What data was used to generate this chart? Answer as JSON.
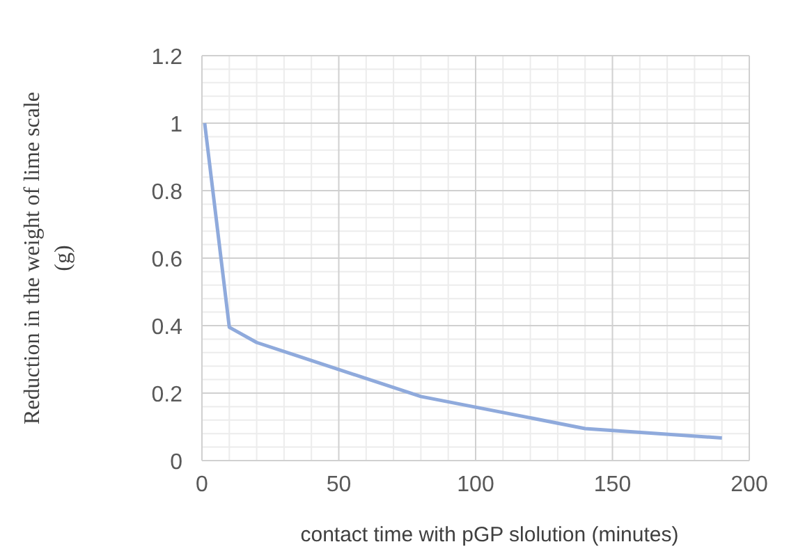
{
  "chart_data": {
    "type": "line",
    "xlabel": "contact time with pGP slolution (minutes)",
    "ylabel": "Reduction in the weight of lime scale (g)",
    "series": [
      {
        "color": "#8faadc",
        "x": [
          1,
          10,
          20,
          80,
          140,
          190
        ],
        "values": [
          1.0,
          0.395,
          0.35,
          0.19,
          0.095,
          0.067
        ]
      }
    ],
    "xlim": [
      0,
      200
    ],
    "xticks": [
      0,
      50,
      100,
      150,
      200
    ],
    "ylim": [
      0,
      1.2
    ],
    "yticks": [
      0,
      0.2,
      0.4,
      0.6,
      0.8,
      1,
      1.2
    ],
    "grid": true,
    "marker": "none",
    "line_style": "solid"
  }
}
